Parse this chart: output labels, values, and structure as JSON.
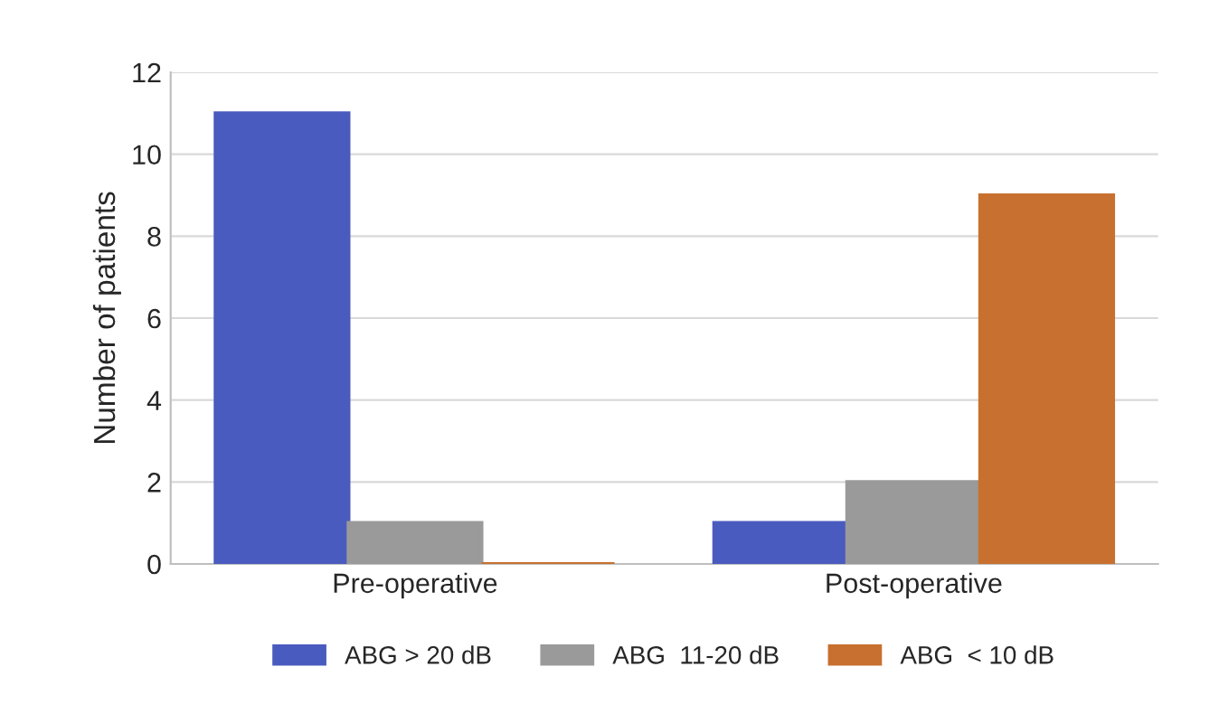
{
  "chart_data": {
    "type": "bar",
    "ylabel": "Number of patients",
    "categories": [
      "Pre-operative",
      "Post-operative"
    ],
    "series": [
      {
        "name": "ABG > 20 dB",
        "color": "#4a5bbf",
        "values": [
          11,
          1
        ]
      },
      {
        "name": "ABG  11-20 dB",
        "color": "#9a9a9a",
        "values": [
          1,
          2
        ]
      },
      {
        "name": "ABG  < 10 dB",
        "color": "#c8702f",
        "values": [
          0,
          9
        ]
      }
    ],
    "ylim": [
      0,
      12
    ],
    "yticks": [
      0,
      2,
      4,
      6,
      8,
      10,
      12
    ],
    "grid": "y",
    "legend": "bottom"
  }
}
